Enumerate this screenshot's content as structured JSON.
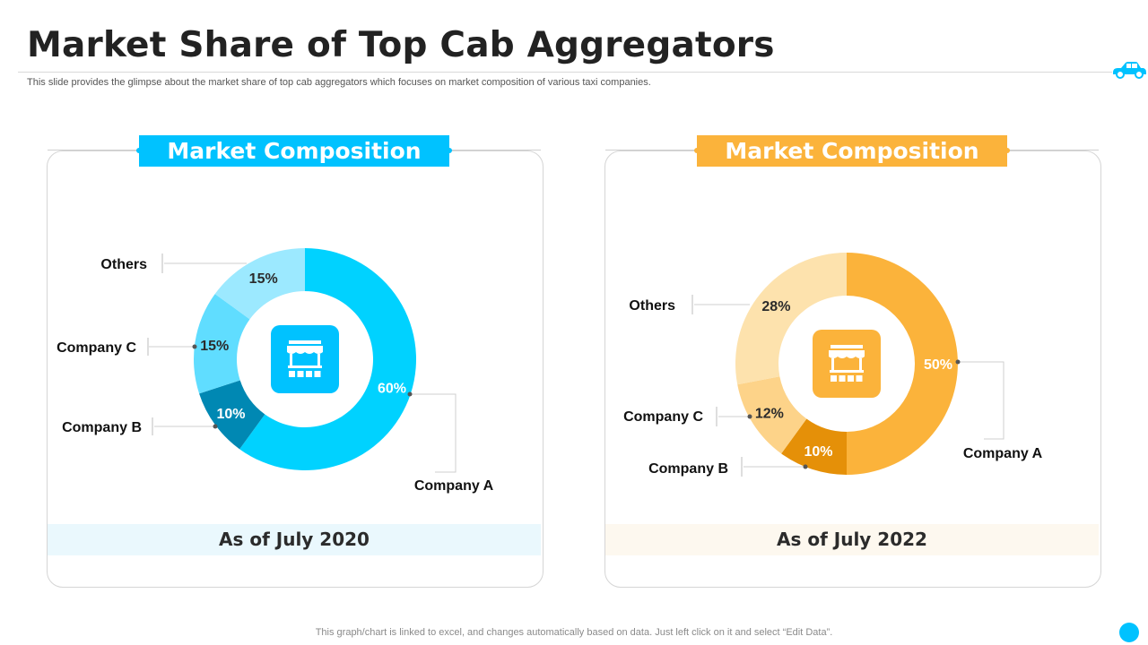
{
  "page": {
    "title": "Market Share of Top Cab Aggregators",
    "subtitle": "This slide provides the glimpse about the market share of top cab aggregators which focuses on market composition of various taxi companies.",
    "footer": "This graph/chart is linked to excel,  and changes automatically based on data. Just left click on it and select “Edit Data”."
  },
  "icons": [
    "car-icon",
    "shop-icon"
  ],
  "chart_data": [
    {
      "type": "pie",
      "title": "Market Composition",
      "caption": "As of July 2020",
      "accent": "#00c2ff",
      "slices": [
        {
          "label": "Company A",
          "value": 60,
          "display": "60%",
          "color": "#00d2ff"
        },
        {
          "label": "Company B",
          "value": 10,
          "display": "10%",
          "color": "#0088b3"
        },
        {
          "label": "Company C",
          "value": 15,
          "display": "15%",
          "color": "#60ddff"
        },
        {
          "label": "Others",
          "value": 15,
          "display": "15%",
          "color": "#9ce9ff"
        }
      ]
    },
    {
      "type": "pie",
      "title": "Market Composition",
      "caption": "As of July 2022",
      "accent": "#fbb33b",
      "slices": [
        {
          "label": "Company A",
          "value": 50,
          "display": "50%",
          "color": "#fbb33b"
        },
        {
          "label": "Company B",
          "value": 10,
          "display": "10%",
          "color": "#e59008"
        },
        {
          "label": "Company C",
          "value": 12,
          "display": "12%",
          "color": "#fdd389"
        },
        {
          "label": "Others",
          "value": 28,
          "display": "28%",
          "color": "#fde2ad"
        }
      ]
    }
  ]
}
